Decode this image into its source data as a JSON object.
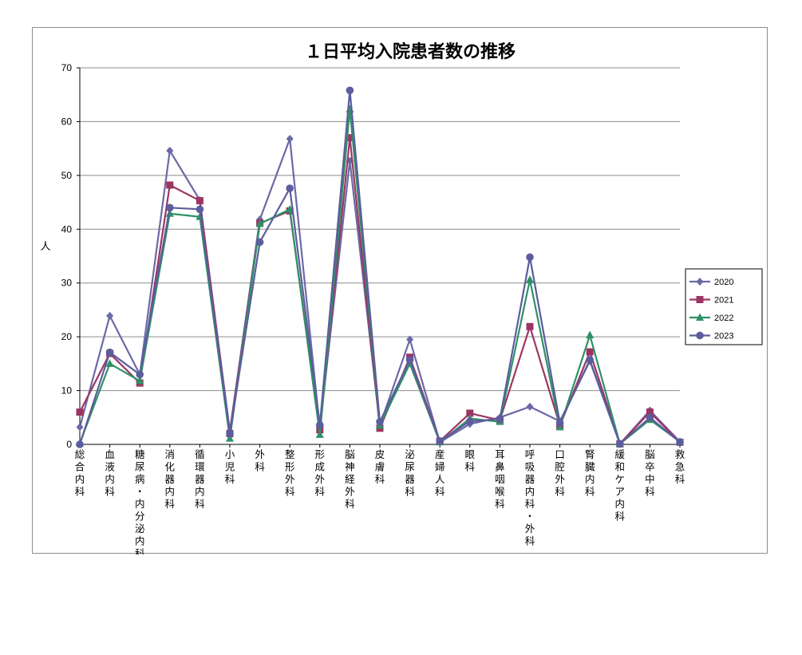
{
  "chart_data": {
    "type": "line",
    "title": "１日平均入院患者数の推移",
    "ylabel": "人",
    "xlabel": "",
    "ylim": [
      0,
      70
    ],
    "yticks": [
      0,
      10,
      20,
      30,
      40,
      50,
      60,
      70
    ],
    "grid": true,
    "legend_position": "right",
    "categories": [
      "総合内科",
      "血液内科",
      "糖尿病・内分泌内科",
      "消化器内科",
      "循環器内科",
      "小児科",
      "外科",
      "整形外科",
      "形成外科",
      "脳神経外科",
      "皮膚科",
      "泌尿器科",
      "産婦人科",
      "眼科",
      "耳鼻咽喉科",
      "呼吸器内科・外科",
      "口腔外科",
      "腎臓内科",
      "緩和ケア内科",
      "脳卒中科",
      "救急科"
    ],
    "series": [
      {
        "name": "2020",
        "color": "#6b69a6",
        "marker": "diamond",
        "values": [
          3.2,
          23.9,
          13.0,
          54.6,
          45.4,
          2.5,
          41.8,
          56.8,
          3.0,
          52.7,
          3.5,
          19.5,
          0.4,
          3.8,
          5.0,
          7.0,
          4.3,
          15.5,
          0.1,
          6.3,
          0.5
        ]
      },
      {
        "name": "2021",
        "color": "#9c3563",
        "marker": "square",
        "values": [
          6.0,
          16.9,
          11.4,
          48.2,
          45.3,
          2.0,
          41.1,
          43.4,
          2.7,
          57.0,
          3.0,
          16.2,
          0.6,
          5.8,
          4.5,
          21.9,
          3.5,
          17.2,
          0.1,
          6.0,
          0.4
        ]
      },
      {
        "name": "2022",
        "color": "#2e9166",
        "marker": "triangle",
        "values": [
          0.2,
          15.0,
          11.8,
          42.9,
          42.3,
          1.1,
          41.0,
          43.7,
          1.8,
          62.3,
          3.5,
          15.0,
          0.4,
          4.8,
          4.2,
          30.6,
          3.2,
          20.3,
          0.1,
          4.6,
          0.5
        ]
      },
      {
        "name": "2023",
        "color": "#5b5d9d",
        "marker": "circle",
        "values": [
          0.0,
          17.1,
          13.0,
          44.0,
          43.7,
          2.0,
          37.6,
          47.6,
          3.6,
          65.8,
          4.2,
          15.7,
          0.6,
          4.3,
          4.7,
          34.8,
          4.0,
          15.7,
          0.1,
          5.0,
          0.4
        ]
      }
    ]
  }
}
